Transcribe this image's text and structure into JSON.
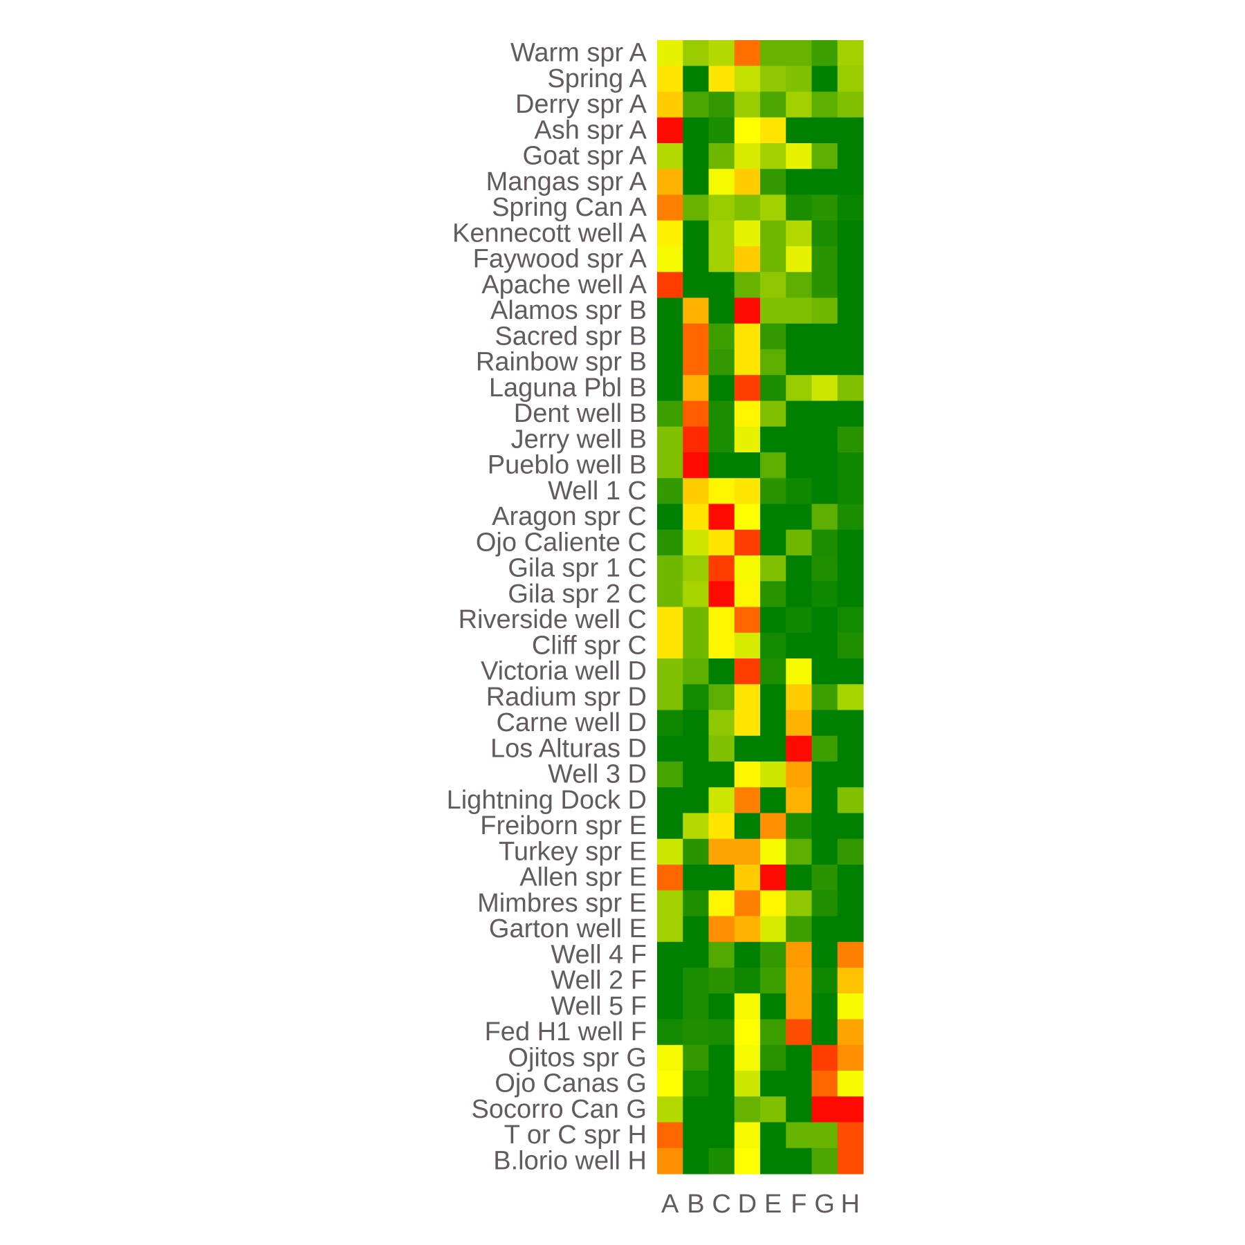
{
  "chart_data": {
    "type": "heatmap",
    "title": "",
    "xlabel": "",
    "ylabel": "",
    "columns": [
      "A",
      "B",
      "C",
      "D",
      "E",
      "F",
      "G",
      "H"
    ],
    "rows": [
      "Warm spr A",
      "Spring A",
      "Derry spr A",
      "Ash spr A",
      "Goat spr A",
      "Mangas spr A",
      "Spring Can A",
      "Kennecott well A",
      "Faywood spr A",
      "Apache well A",
      "Alamos spr B",
      "Sacred spr B",
      "Rainbow spr B",
      "Laguna Pbl B",
      "Dent well B",
      "Jerry well B",
      "Pueblo well B",
      "Well 1 C",
      "Aragon spr C",
      "Ojo Caliente C",
      "Gila spr 1 C",
      "Gila spr 2 C",
      "Riverside well C",
      "Cliff spr C",
      "Victoria well D",
      "Radium spr D",
      "Carne well D",
      "Los Alturas D",
      "Well 3 D",
      "Lightning Dock D",
      "Freiborn spr E",
      "Turkey spr E",
      "Allen spr E",
      "Mimbres spr E",
      "Garton well E",
      "Well 4 F",
      "Well 2 F",
      "Well 5 F",
      "Fed H1 well F",
      "Ojitos spr G",
      "Ojo Canas G",
      "Socorro Can G",
      "T or C spr H",
      "B.lorio well H"
    ],
    "scale_note": "value 0 = green, 0.5 = yellow, 1 = red",
    "values": [
      [
        0.45,
        0.3,
        0.35,
        0.78,
        0.2,
        0.2,
        0.12,
        0.32
      ],
      [
        0.55,
        0.0,
        0.55,
        0.38,
        0.28,
        0.25,
        0.0,
        0.3
      ],
      [
        0.6,
        0.15,
        0.1,
        0.3,
        0.15,
        0.32,
        0.18,
        0.25
      ],
      [
        0.98,
        0.0,
        0.05,
        0.5,
        0.55,
        0.0,
        0.0,
        0.0
      ],
      [
        0.35,
        0.0,
        0.22,
        0.42,
        0.32,
        0.45,
        0.18,
        0.0
      ],
      [
        0.65,
        0.0,
        0.48,
        0.6,
        0.1,
        0.0,
        0.0,
        0.0
      ],
      [
        0.75,
        0.2,
        0.3,
        0.25,
        0.32,
        0.05,
        0.08,
        0.02
      ],
      [
        0.53,
        0.0,
        0.32,
        0.45,
        0.22,
        0.35,
        0.05,
        0.0
      ],
      [
        0.48,
        0.0,
        0.32,
        0.6,
        0.22,
        0.45,
        0.08,
        0.0
      ],
      [
        0.88,
        0.0,
        0.0,
        0.2,
        0.28,
        0.18,
        0.08,
        0.0
      ],
      [
        0.0,
        0.65,
        0.0,
        0.98,
        0.25,
        0.25,
        0.22,
        0.0
      ],
      [
        0.0,
        0.8,
        0.12,
        0.55,
        0.1,
        0.0,
        0.0,
        0.0
      ],
      [
        0.0,
        0.8,
        0.1,
        0.55,
        0.18,
        0.0,
        0.0,
        0.0
      ],
      [
        0.0,
        0.65,
        0.0,
        0.88,
        0.05,
        0.3,
        0.4,
        0.25
      ],
      [
        0.12,
        0.82,
        0.05,
        0.52,
        0.25,
        0.0,
        0.0,
        0.0
      ],
      [
        0.25,
        0.92,
        0.05,
        0.45,
        0.0,
        0.0,
        0.0,
        0.08
      ],
      [
        0.25,
        0.98,
        0.0,
        0.0,
        0.18,
        0.0,
        0.0,
        0.03
      ],
      [
        0.1,
        0.6,
        0.52,
        0.55,
        0.08,
        0.03,
        0.0,
        0.03
      ],
      [
        0.0,
        0.55,
        0.98,
        0.5,
        0.0,
        0.0,
        0.18,
        0.05
      ],
      [
        0.08,
        0.4,
        0.55,
        0.88,
        0.0,
        0.22,
        0.05,
        0.0
      ],
      [
        0.22,
        0.3,
        0.88,
        0.48,
        0.25,
        0.0,
        0.06,
        0.0
      ],
      [
        0.22,
        0.33,
        0.98,
        0.52,
        0.08,
        0.0,
        0.03,
        0.0
      ],
      [
        0.55,
        0.22,
        0.52,
        0.8,
        0.0,
        0.03,
        0.0,
        0.04
      ],
      [
        0.55,
        0.22,
        0.52,
        0.42,
        0.04,
        0.0,
        0.0,
        0.06
      ],
      [
        0.25,
        0.18,
        0.0,
        0.88,
        0.06,
        0.48,
        0.0,
        0.0
      ],
      [
        0.25,
        0.04,
        0.18,
        0.55,
        0.0,
        0.6,
        0.12,
        0.33
      ],
      [
        0.03,
        0.0,
        0.28,
        0.55,
        0.0,
        0.65,
        0.0,
        0.0
      ],
      [
        0.0,
        0.0,
        0.25,
        0.0,
        0.0,
        0.98,
        0.12,
        0.0
      ],
      [
        0.14,
        0.0,
        0.0,
        0.52,
        0.4,
        0.68,
        0.0,
        0.0
      ],
      [
        0.0,
        0.0,
        0.4,
        0.75,
        0.0,
        0.65,
        0.0,
        0.25
      ],
      [
        0.0,
        0.35,
        0.55,
        0.0,
        0.72,
        0.05,
        0.0,
        0.0
      ],
      [
        0.4,
        0.08,
        0.68,
        0.68,
        0.48,
        0.18,
        0.0,
        0.1
      ],
      [
        0.8,
        0.0,
        0.0,
        0.6,
        0.98,
        0.0,
        0.08,
        0.0
      ],
      [
        0.32,
        0.06,
        0.52,
        0.75,
        0.52,
        0.28,
        0.06,
        0.0
      ],
      [
        0.32,
        0.0,
        0.72,
        0.65,
        0.42,
        0.12,
        0.0,
        0.0
      ],
      [
        0.0,
        0.0,
        0.16,
        0.0,
        0.1,
        0.7,
        0.0,
        0.75
      ],
      [
        0.0,
        0.05,
        0.08,
        0.03,
        0.12,
        0.68,
        0.03,
        0.62
      ],
      [
        0.0,
        0.05,
        0.0,
        0.48,
        0.0,
        0.68,
        0.0,
        0.48
      ],
      [
        0.04,
        0.06,
        0.05,
        0.5,
        0.12,
        0.85,
        0.0,
        0.68
      ],
      [
        0.48,
        0.1,
        0.0,
        0.48,
        0.08,
        0.0,
        0.88,
        0.72
      ],
      [
        0.5,
        0.04,
        0.0,
        0.4,
        0.0,
        0.0,
        0.8,
        0.48
      ],
      [
        0.35,
        0.0,
        0.0,
        0.2,
        0.25,
        0.0,
        0.98,
        0.98
      ],
      [
        0.8,
        0.0,
        0.0,
        0.48,
        0.0,
        0.2,
        0.2,
        0.85
      ],
      [
        0.72,
        0.0,
        0.05,
        0.5,
        0.0,
        0.0,
        0.15,
        0.85
      ]
    ]
  }
}
